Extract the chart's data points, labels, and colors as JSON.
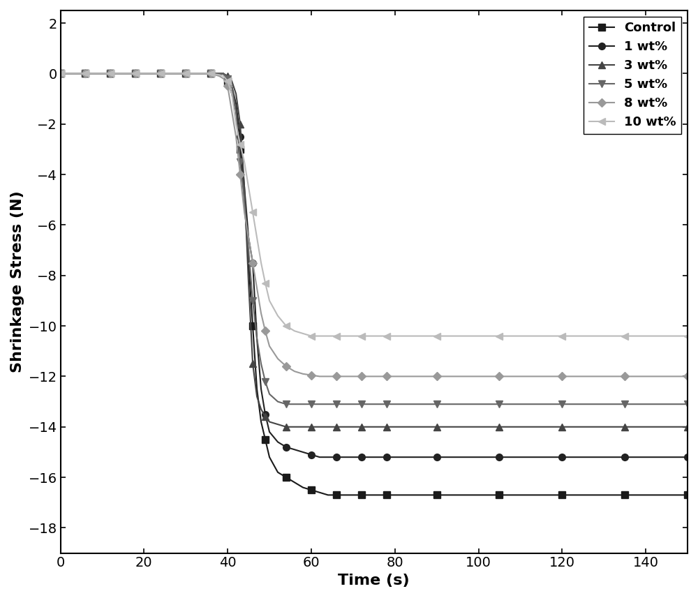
{
  "title": "",
  "xlabel": "Time (s)",
  "ylabel": "Shrinkage Stress (N)",
  "xlim": [
    0,
    150
  ],
  "ylim": [
    -19,
    2.5
  ],
  "yticks": [
    2,
    0,
    -2,
    -4,
    -6,
    -8,
    -10,
    -12,
    -14,
    -16,
    -18
  ],
  "xticks": [
    0,
    20,
    40,
    60,
    80,
    100,
    120,
    140
  ],
  "series": [
    {
      "label": "Control",
      "color": "#1a1a1a",
      "marker": "s",
      "markersize": 7,
      "linewidth": 1.5,
      "linestyle": "-",
      "x": [
        0,
        2,
        4,
        6,
        8,
        10,
        12,
        14,
        16,
        18,
        20,
        22,
        24,
        26,
        28,
        30,
        32,
        34,
        36,
        38,
        39,
        40,
        41,
        42,
        43,
        44,
        45,
        46,
        47,
        48,
        49,
        50,
        52,
        54,
        56,
        58,
        60,
        62,
        64,
        66,
        68,
        70,
        72,
        74,
        76,
        78,
        80,
        85,
        90,
        95,
        100,
        105,
        110,
        115,
        120,
        125,
        130,
        135,
        140,
        145,
        150
      ],
      "y": [
        0,
        0,
        0,
        0,
        0,
        0,
        0,
        0,
        0,
        0,
        0,
        0,
        0,
        0,
        0,
        0,
        0,
        0,
        0,
        0,
        0,
        -0.3,
        -0.8,
        -1.5,
        -3.0,
        -5.0,
        -7.5,
        -10.0,
        -12.5,
        -13.8,
        -14.5,
        -15.2,
        -15.8,
        -16.0,
        -16.2,
        -16.4,
        -16.5,
        -16.6,
        -16.7,
        -16.7,
        -16.7,
        -16.7,
        -16.7,
        -16.7,
        -16.7,
        -16.7,
        -16.7,
        -16.7,
        -16.7,
        -16.7,
        -16.7,
        -16.7,
        -16.7,
        -16.7,
        -16.7,
        -16.7,
        -16.7,
        -16.7,
        -16.7,
        -16.7,
        -16.7
      ]
    },
    {
      "label": "1 wt%",
      "color": "#222222",
      "marker": "o",
      "markersize": 7,
      "linewidth": 1.5,
      "linestyle": "-",
      "x": [
        0,
        2,
        4,
        6,
        8,
        10,
        12,
        14,
        16,
        18,
        20,
        22,
        24,
        26,
        28,
        30,
        32,
        34,
        36,
        38,
        39,
        40,
        41,
        42,
        43,
        44,
        45,
        46,
        47,
        48,
        49,
        50,
        52,
        54,
        56,
        58,
        60,
        62,
        64,
        66,
        68,
        70,
        72,
        74,
        76,
        78,
        80,
        85,
        90,
        95,
        100,
        105,
        110,
        115,
        120,
        125,
        130,
        135,
        140,
        145,
        150
      ],
      "y": [
        0,
        0,
        0,
        0,
        0,
        0,
        0,
        0,
        0,
        0,
        0,
        0,
        0,
        0,
        0,
        0,
        0,
        0,
        0,
        0,
        0,
        -0.2,
        -0.5,
        -1.2,
        -2.5,
        -4.5,
        -6.5,
        -7.5,
        -10.5,
        -12.5,
        -13.5,
        -14.2,
        -14.6,
        -14.8,
        -14.9,
        -15.0,
        -15.1,
        -15.2,
        -15.2,
        -15.2,
        -15.2,
        -15.2,
        -15.2,
        -15.2,
        -15.2,
        -15.2,
        -15.2,
        -15.2,
        -15.2,
        -15.2,
        -15.2,
        -15.2,
        -15.2,
        -15.2,
        -15.2,
        -15.2,
        -15.2,
        -15.2,
        -15.2,
        -15.2,
        -15.2
      ]
    },
    {
      "label": "3 wt%",
      "color": "#444444",
      "marker": "^",
      "markersize": 7,
      "linewidth": 1.5,
      "linestyle": "-",
      "x": [
        0,
        2,
        4,
        6,
        8,
        10,
        12,
        14,
        16,
        18,
        20,
        22,
        24,
        26,
        28,
        30,
        32,
        34,
        36,
        38,
        39,
        40,
        41,
        42,
        43,
        44,
        45,
        46,
        47,
        48,
        49,
        50,
        52,
        54,
        56,
        58,
        60,
        62,
        64,
        66,
        68,
        70,
        72,
        74,
        76,
        78,
        80,
        85,
        90,
        95,
        100,
        105,
        110,
        115,
        120,
        125,
        130,
        135,
        140,
        145,
        150
      ],
      "y": [
        0,
        0,
        0,
        0,
        0,
        0,
        0,
        0,
        0,
        0,
        0,
        0,
        0,
        0,
        0,
        0,
        0,
        0,
        0,
        0,
        0,
        -0.1,
        -0.3,
        -0.8,
        -2.0,
        -4.5,
        -8.3,
        -11.5,
        -12.8,
        -13.3,
        -13.6,
        -13.8,
        -13.9,
        -14.0,
        -14.0,
        -14.0,
        -14.0,
        -14.0,
        -14.0,
        -14.0,
        -14.0,
        -14.0,
        -14.0,
        -14.0,
        -14.0,
        -14.0,
        -14.0,
        -14.0,
        -14.0,
        -14.0,
        -14.0,
        -14.0,
        -14.0,
        -14.0,
        -14.0,
        -14.0,
        -14.0,
        -14.0,
        -14.0,
        -14.0,
        -14.0
      ]
    },
    {
      "label": "5 wt%",
      "color": "#666666",
      "marker": "v",
      "markersize": 7,
      "linewidth": 1.5,
      "linestyle": "-",
      "x": [
        0,
        2,
        4,
        6,
        8,
        10,
        12,
        14,
        16,
        18,
        20,
        22,
        24,
        26,
        28,
        30,
        32,
        34,
        36,
        38,
        39,
        40,
        41,
        42,
        43,
        44,
        45,
        46,
        47,
        48,
        49,
        50,
        52,
        54,
        56,
        58,
        60,
        62,
        64,
        66,
        68,
        70,
        72,
        74,
        76,
        78,
        80,
        85,
        90,
        95,
        100,
        105,
        110,
        115,
        120,
        125,
        130,
        135,
        140,
        145,
        150
      ],
      "y": [
        0,
        0,
        0,
        0,
        0,
        0,
        0,
        0,
        0,
        0,
        0,
        0,
        0,
        0,
        0,
        0,
        0,
        0,
        0,
        0,
        0,
        -0.2,
        -0.5,
        -1.5,
        -3.5,
        -5.0,
        -7.0,
        -9.0,
        -10.5,
        -11.5,
        -12.2,
        -12.7,
        -13.0,
        -13.1,
        -13.1,
        -13.1,
        -13.1,
        -13.1,
        -13.1,
        -13.1,
        -13.1,
        -13.1,
        -13.1,
        -13.1,
        -13.1,
        -13.1,
        -13.1,
        -13.1,
        -13.1,
        -13.1,
        -13.1,
        -13.1,
        -13.1,
        -13.1,
        -13.1,
        -13.1,
        -13.1,
        -13.1,
        -13.1,
        -13.1,
        -13.1
      ]
    },
    {
      "label": "8 wt%",
      "color": "#999999",
      "marker": "D",
      "markersize": 6,
      "linewidth": 1.5,
      "linestyle": "-",
      "x": [
        0,
        2,
        4,
        6,
        8,
        10,
        12,
        14,
        16,
        18,
        20,
        22,
        24,
        26,
        28,
        30,
        32,
        34,
        36,
        38,
        39,
        40,
        41,
        42,
        43,
        44,
        45,
        46,
        47,
        48,
        49,
        50,
        52,
        54,
        56,
        58,
        60,
        62,
        64,
        66,
        68,
        70,
        72,
        74,
        76,
        78,
        80,
        85,
        90,
        95,
        100,
        105,
        110,
        115,
        120,
        125,
        130,
        135,
        140,
        145,
        150
      ],
      "y": [
        0,
        0,
        0,
        0,
        0,
        0,
        0,
        0,
        0,
        0,
        0,
        0,
        0,
        0,
        0,
        0,
        0,
        0,
        0,
        -0.1,
        -0.2,
        -0.5,
        -1.5,
        -2.5,
        -4.0,
        -5.5,
        -6.5,
        -7.5,
        -8.5,
        -9.5,
        -10.2,
        -10.8,
        -11.3,
        -11.6,
        -11.8,
        -11.9,
        -11.95,
        -12.0,
        -12.0,
        -12.0,
        -12.0,
        -12.0,
        -12.0,
        -12.0,
        -12.0,
        -12.0,
        -12.0,
        -12.0,
        -12.0,
        -12.0,
        -12.0,
        -12.0,
        -12.0,
        -12.0,
        -12.0,
        -12.0,
        -12.0,
        -12.0,
        -12.0,
        -12.0,
        -12.0
      ]
    },
    {
      "label": "10 wt%",
      "color": "#bbbbbb",
      "marker": "<",
      "markersize": 7,
      "linewidth": 1.5,
      "linestyle": "-",
      "x": [
        0,
        2,
        4,
        6,
        8,
        10,
        12,
        14,
        16,
        18,
        20,
        22,
        24,
        26,
        28,
        30,
        32,
        34,
        36,
        38,
        39,
        40,
        41,
        42,
        43,
        44,
        45,
        46,
        47,
        48,
        49,
        50,
        52,
        54,
        56,
        58,
        60,
        62,
        64,
        66,
        68,
        70,
        72,
        74,
        76,
        78,
        80,
        85,
        90,
        95,
        100,
        105,
        110,
        115,
        120,
        125,
        130,
        135,
        140,
        145,
        150
      ],
      "y": [
        0,
        0,
        0,
        0,
        0,
        0,
        0,
        0,
        0,
        0,
        0,
        0,
        0,
        0,
        0,
        0,
        0,
        0,
        0,
        -0.05,
        -0.1,
        -0.3,
        -0.8,
        -2.0,
        -2.8,
        -3.5,
        -4.5,
        -5.5,
        -6.5,
        -7.5,
        -8.3,
        -9.0,
        -9.6,
        -10.0,
        -10.2,
        -10.3,
        -10.4,
        -10.4,
        -10.4,
        -10.4,
        -10.4,
        -10.4,
        -10.4,
        -10.4,
        -10.4,
        -10.4,
        -10.4,
        -10.4,
        -10.4,
        -10.4,
        -10.4,
        -10.4,
        -10.4,
        -10.4,
        -10.4,
        -10.4,
        -10.4,
        -10.4,
        -10.4,
        -10.4,
        -10.4
      ]
    }
  ],
  "legend_fontsize": 13,
  "axis_fontsize": 16,
  "tick_fontsize": 14,
  "figure_width": 10.0,
  "figure_height": 8.57,
  "background_color": "#ffffff",
  "markevery": 3
}
